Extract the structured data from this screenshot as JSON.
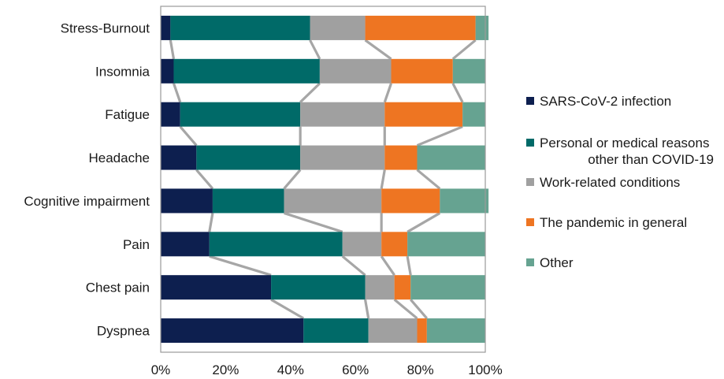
{
  "chart_data": {
    "type": "bar",
    "orientation": "horizontal",
    "stacked": "100%",
    "categories": [
      "Stress-Burnout",
      "Insomnia",
      "Fatigue",
      "Headache",
      "Cognitive impairment",
      "Pain",
      "Chest pain",
      "Dyspnea"
    ],
    "series": [
      {
        "name": "SARS-CoV-2 infection",
        "color": "#0d1f4f",
        "values": [
          3,
          4,
          6,
          11,
          16,
          15,
          34,
          44
        ]
      },
      {
        "name": "Personal or medical reasons other than COVID-19",
        "color": "#006a68",
        "values": [
          43,
          45,
          37,
          32,
          22,
          41,
          29,
          20
        ]
      },
      {
        "name": "Work-related conditions",
        "color": "#a0a0a0",
        "values": [
          17,
          22,
          26,
          26,
          30,
          12,
          9,
          15
        ]
      },
      {
        "name": "The pandemic in general",
        "color": "#ee7522",
        "values": [
          34,
          19,
          24,
          10,
          18,
          8,
          5,
          3
        ]
      },
      {
        "name": "Other",
        "color": "#66a391",
        "values": [
          4,
          10,
          7,
          21,
          15,
          24,
          23,
          18
        ]
      }
    ],
    "xlim": [
      0,
      100
    ],
    "xticks": [
      "0%",
      "20%",
      "40%",
      "60%",
      "80%",
      "100%"
    ],
    "connector_color": "#a6a6a6",
    "legend_position": "right",
    "grid": false
  }
}
